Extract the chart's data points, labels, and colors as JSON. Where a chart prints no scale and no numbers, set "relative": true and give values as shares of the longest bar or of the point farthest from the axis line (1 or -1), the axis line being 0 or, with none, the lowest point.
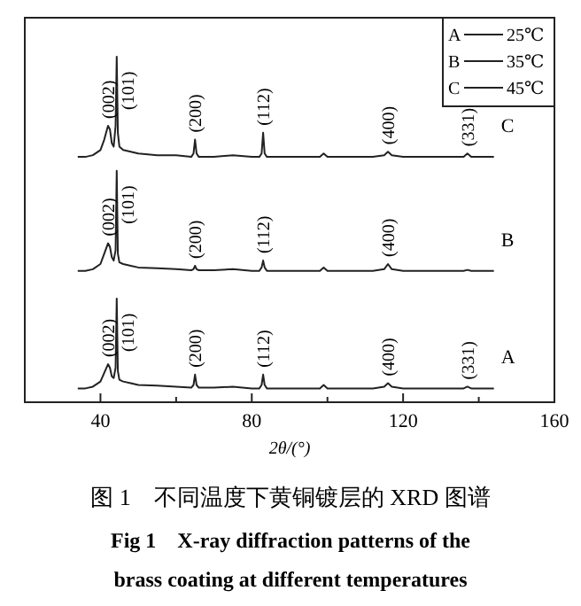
{
  "chart_data": {
    "type": "line",
    "relative": true,
    "title": "图 1　不同温度下黄铜镀层的 XRD 图谱",
    "subtitle": "Fig 1　X-ray diffraction patterns of the brass coating at different temperatures",
    "xlabel": "2θ/(°)",
    "xlim": [
      20,
      160
    ],
    "xticks": [
      40,
      {
        "value": 60,
        "label": null
      },
      80,
      {
        "value": 100,
        "label": null
      },
      120,
      {
        "value": 140,
        "label": null
      },
      160
    ],
    "legend": "top right",
    "marker": "none",
    "line_style": "solid",
    "series": [
      {
        "name": "A",
        "color": "#222222",
        "x": [
          34,
          36,
          38,
          40,
          41,
          42,
          42.5,
          43,
          43.5,
          44,
          44.3,
          44.6,
          45,
          46,
          48,
          50,
          55,
          60,
          64,
          64.6,
          65,
          65.4,
          66,
          70,
          75,
          80,
          82,
          82.6,
          83,
          83.4,
          84,
          90,
          98,
          99,
          100,
          105,
          112,
          115,
          116,
          117,
          120,
          130,
          136,
          137,
          138,
          144
        ],
        "values": [
          0.04,
          0.04,
          0.045,
          0.06,
          0.085,
          0.11,
          0.1,
          0.075,
          0.07,
          0.1,
          0.3,
          0.09,
          0.065,
          0.06,
          0.055,
          0.05,
          0.048,
          0.045,
          0.042,
          0.05,
          0.08,
          0.05,
          0.042,
          0.042,
          0.045,
          0.04,
          0.04,
          0.05,
          0.08,
          0.05,
          0.04,
          0.04,
          0.04,
          0.05,
          0.04,
          0.04,
          0.04,
          0.045,
          0.055,
          0.045,
          0.04,
          0.04,
          0.04,
          0.045,
          0.04,
          0.04
        ]
      },
      {
        "name": "B",
        "color": "#222222",
        "x": [
          34,
          36,
          38,
          40,
          41,
          42,
          42.5,
          43,
          43.5,
          44,
          44.3,
          44.6,
          45,
          46,
          48,
          50,
          55,
          60,
          64,
          64.6,
          65,
          65.4,
          66,
          70,
          75,
          80,
          82,
          82.6,
          83,
          83.4,
          84,
          90,
          98,
          99,
          100,
          105,
          112,
          115,
          116,
          117,
          120,
          130,
          136,
          137,
          138,
          144
        ],
        "values": [
          0.38,
          0.38,
          0.385,
          0.4,
          0.43,
          0.46,
          0.45,
          0.42,
          0.41,
          0.44,
          0.67,
          0.43,
          0.405,
          0.4,
          0.395,
          0.39,
          0.388,
          0.385,
          0.382,
          0.385,
          0.395,
          0.385,
          0.382,
          0.382,
          0.385,
          0.38,
          0.38,
          0.39,
          0.41,
          0.39,
          0.38,
          0.38,
          0.38,
          0.39,
          0.38,
          0.38,
          0.38,
          0.385,
          0.4,
          0.385,
          0.38,
          0.38,
          0.38,
          0.383,
          0.38,
          0.38
        ]
      },
      {
        "name": "C",
        "color": "#222222",
        "x": [
          34,
          36,
          38,
          40,
          41,
          42,
          42.5,
          43,
          43.5,
          44,
          44.3,
          44.6,
          45,
          46,
          48,
          50,
          55,
          60,
          64,
          64.6,
          65,
          65.4,
          66,
          70,
          75,
          80,
          82,
          82.6,
          83,
          83.4,
          84,
          90,
          98,
          99,
          100,
          105,
          112,
          115,
          116,
          117,
          120,
          130,
          136,
          137,
          138,
          144
        ],
        "values": [
          0.71,
          0.71,
          0.715,
          0.73,
          0.76,
          0.8,
          0.79,
          0.75,
          0.74,
          0.8,
          1,
          0.78,
          0.74,
          0.73,
          0.725,
          0.72,
          0.715,
          0.715,
          0.71,
          0.72,
          0.76,
          0.72,
          0.71,
          0.71,
          0.715,
          0.71,
          0.71,
          0.72,
          0.78,
          0.72,
          0.71,
          0.71,
          0.71,
          0.72,
          0.71,
          0.71,
          0.71,
          0.715,
          0.725,
          0.715,
          0.71,
          0.71,
          0.71,
          0.72,
          0.71,
          0.71
        ]
      }
    ],
    "annotations": [
      {
        "text": "(002)",
        "x": 42,
        "y": 0.11
      },
      {
        "text": "(101)",
        "x": 44.3,
        "y": 0.3
      },
      {
        "text": "(200)",
        "x": 65,
        "y": 0.08
      },
      {
        "text": "(112)",
        "x": 83,
        "y": 0.08
      },
      {
        "text": "(400)",
        "x": 116,
        "y": 0.055
      },
      {
        "text": "(331)",
        "x": 137,
        "y": 0.045
      },
      {
        "text": "(002)",
        "x": 42,
        "y": 0.46
      },
      {
        "text": "(101)",
        "x": 44.3,
        "y": 0.67
      },
      {
        "text": "(200)",
        "x": 65,
        "y": 0.395
      },
      {
        "text": "(112)",
        "x": 83,
        "y": 0.41
      },
      {
        "text": "(400)",
        "x": 116,
        "y": 0.4
      },
      {
        "text": "(002)",
        "x": 42,
        "y": 0.8
      },
      {
        "text": "(101)",
        "x": 44.3,
        "y": 1
      },
      {
        "text": "(200)",
        "x": 65,
        "y": 0.76
      },
      {
        "text": "(112)",
        "x": 83,
        "y": 0.78
      },
      {
        "text": "(400)",
        "x": 116,
        "y": 0.725
      },
      {
        "text": "(331)",
        "x": 137,
        "y": 0.72
      },
      "25℃",
      "35℃",
      "45℃"
    ]
  }
}
